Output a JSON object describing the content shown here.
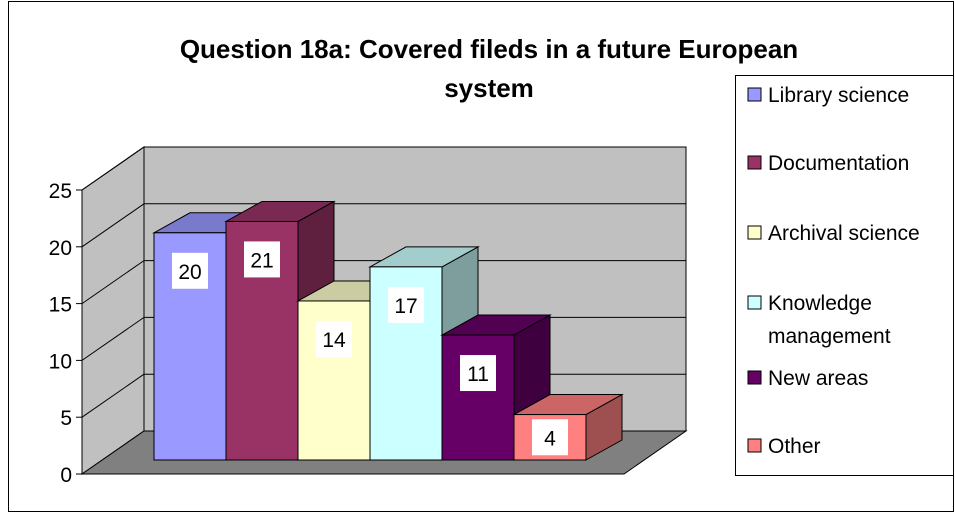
{
  "chart_data": {
    "type": "bar",
    "title_lines": [
      "Question 18a: Covered fileds in a future European",
      "system"
    ],
    "categories": [
      "Library science",
      "Documentation",
      "Archival science",
      "Knowledge management",
      "New areas",
      "Other"
    ],
    "legend_lines": [
      [
        "Library science"
      ],
      [
        "Documentation"
      ],
      [
        "Archival science"
      ],
      [
        "Knowledge",
        "management"
      ],
      [
        "New areas"
      ],
      [
        "Other"
      ]
    ],
    "values": [
      20,
      21,
      14,
      17,
      11,
      4
    ],
    "data_labels": [
      "20",
      "21",
      "14",
      "17",
      "11",
      "4"
    ],
    "colors": [
      "#9999ff",
      "#993366",
      "#ffffcc",
      "#ccffff",
      "#660066",
      "#ff8080"
    ],
    "ylim": [
      0,
      25
    ],
    "yticks": [
      "0",
      "5",
      "10",
      "15",
      "20",
      "25"
    ],
    "grid": true,
    "legend": "right",
    "xlabel": "",
    "ylabel": ""
  }
}
